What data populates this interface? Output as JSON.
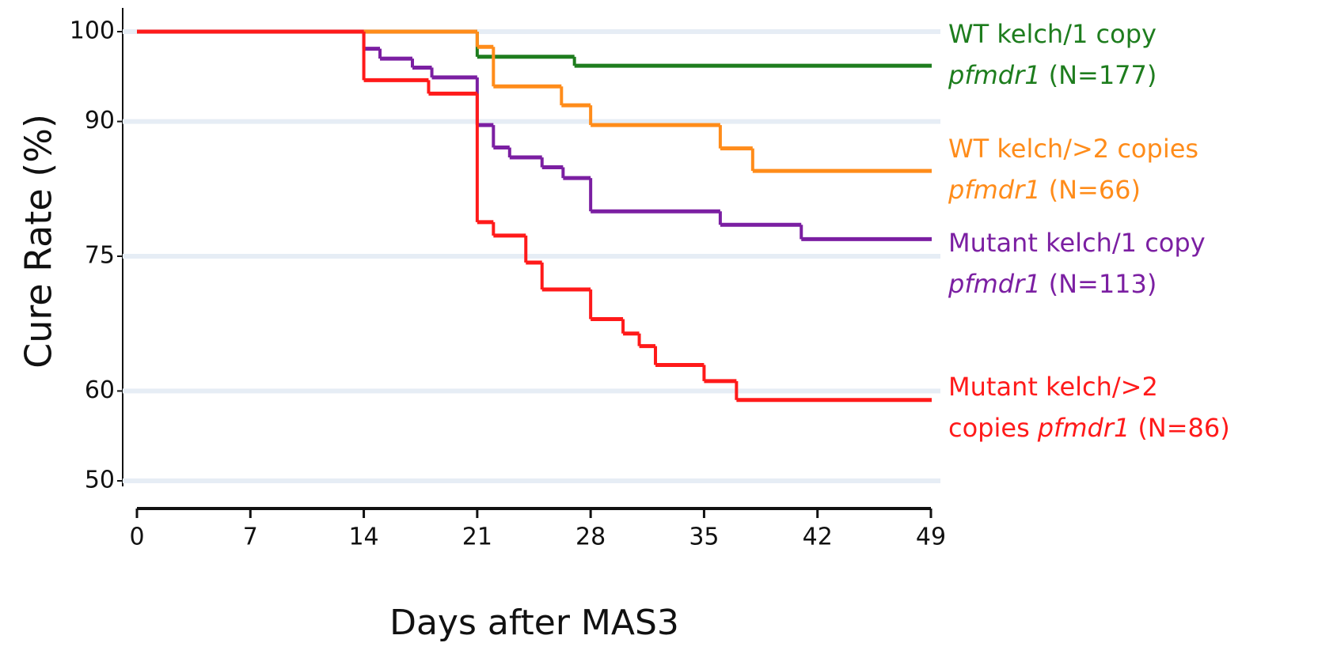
{
  "chart_data": {
    "type": "step",
    "x_label": "Days after MAS3",
    "y_label": "Cure Rate (%)",
    "xlim": [
      0,
      49
    ],
    "xticks": [
      0,
      7,
      14,
      21,
      28,
      35,
      42,
      49
    ],
    "ylim": [
      50,
      100
    ],
    "yticks": [
      50,
      60,
      75,
      90,
      100
    ],
    "grid": true,
    "series": [
      {
        "color": "#1e7d1e",
        "label_lines": [
          [
            {
              "text": "WT kelch/1 copy"
            }
          ],
          [
            {
              "text": "pfmdr1",
              "style": "italic"
            },
            {
              "text": "(N=177)"
            }
          ]
        ],
        "x": [
          0,
          21,
          27,
          49
        ],
        "values": [
          100,
          97.2,
          96.2,
          96.2
        ]
      },
      {
        "color": "#ff8c1a",
        "label_lines": [
          [
            {
              "text": "WT kelch/>2 copies"
            }
          ],
          [
            {
              "text": "pfmdr1",
              "style": "italic"
            },
            {
              "text": "(N=66)"
            }
          ]
        ],
        "x": [
          0,
          21,
          22,
          26.2,
          28,
          36,
          38,
          49
        ],
        "values": [
          100,
          98.3,
          93.9,
          91.8,
          89.6,
          87.0,
          84.5,
          84.5
        ]
      },
      {
        "color": "#7b1fa2",
        "label_lines": [
          [
            {
              "text": "Mutant kelch/1 copy"
            }
          ],
          [
            {
              "text": "pfmdr1",
              "style": "italic"
            },
            {
              "text": "(N=113)"
            }
          ]
        ],
        "x": [
          0,
          14,
          15,
          17,
          18.2,
          21,
          22,
          23,
          25,
          26.3,
          28,
          36,
          41,
          49
        ],
        "values": [
          100,
          98.1,
          97.0,
          96.0,
          94.9,
          89.6,
          87.1,
          86.0,
          84.9,
          83.7,
          80.0,
          78.5,
          76.9,
          76.9
        ]
      },
      {
        "color": "#ff1a1a",
        "label_lines": [
          [
            {
              "text": "Mutant kelch/>2"
            }
          ],
          [
            {
              "text": "copies"
            },
            {
              "text": "pfmdr1",
              "style": "italic"
            },
            {
              "text": "(N=86)"
            }
          ]
        ],
        "x": [
          0,
          14,
          18,
          21,
          22,
          24,
          25,
          28,
          30,
          31,
          32,
          35,
          37,
          49
        ],
        "values": [
          100,
          94.6,
          93.1,
          78.8,
          77.3,
          74.3,
          71.3,
          68.0,
          66.4,
          65.0,
          62.9,
          61.1,
          59.0,
          59.0
        ]
      }
    ]
  }
}
